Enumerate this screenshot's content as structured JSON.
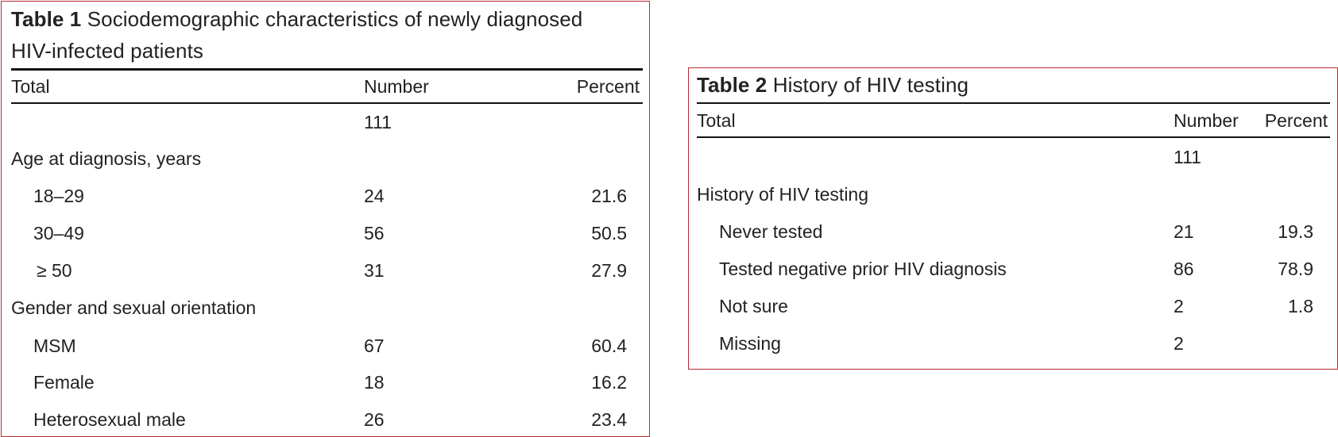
{
  "table1": {
    "label": "Table 1",
    "caption_line1": "Sociodemographic characteristics of newly diagnosed",
    "caption_line2": "HIV-infected patients",
    "headers": {
      "total": "Total",
      "number": "Number",
      "percent": "Percent"
    },
    "total_number": "111",
    "groups": [
      {
        "title": "Age at diagnosis, years",
        "rows": [
          {
            "label": "18–29",
            "number": "24",
            "percent": "21.6"
          },
          {
            "label": "30–49",
            "number": "56",
            "percent": "50.5"
          },
          {
            "label": "≥ 50",
            "number": "31",
            "percent": "27.9"
          }
        ]
      },
      {
        "title": "Gender and sexual orientation",
        "rows": [
          {
            "label": "MSM",
            "number": "67",
            "percent": "60.4"
          },
          {
            "label": "Female",
            "number": "18",
            "percent": "16.2"
          },
          {
            "label": "Heterosexual male",
            "number": "26",
            "percent": "23.4"
          }
        ]
      }
    ]
  },
  "table2": {
    "label": "Table 2",
    "caption": "History of HIV testing",
    "headers": {
      "total": "Total",
      "number": "Number",
      "percent": "Percent"
    },
    "total_number": "111",
    "groups": [
      {
        "title": "History of HIV testing",
        "rows": [
          {
            "label": "Never tested",
            "number": "21",
            "percent": "19.3"
          },
          {
            "label": "Tested negative prior HIV diagnosis",
            "number": "86",
            "percent": "78.9"
          },
          {
            "label": "Not sure",
            "number": "2",
            "percent": "1.8"
          },
          {
            "label": "Missing",
            "number": "2",
            "percent": ""
          }
        ]
      }
    ]
  }
}
